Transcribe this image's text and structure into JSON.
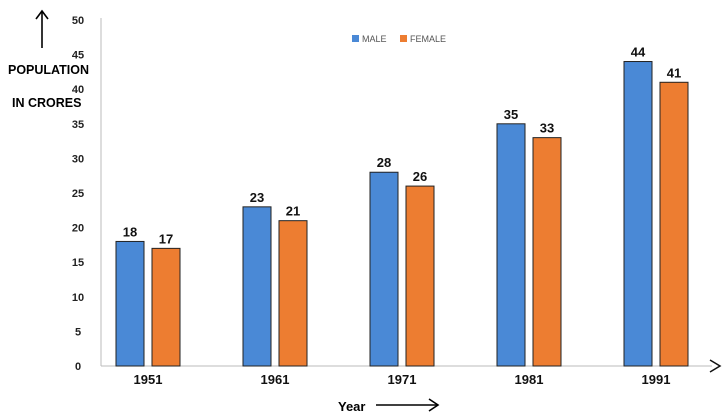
{
  "chart_data": {
    "type": "bar",
    "categories": [
      "1951",
      "1961",
      "1971",
      "1981",
      "1991"
    ],
    "series": [
      {
        "name": "MALE",
        "values": [
          18,
          23,
          28,
          35,
          44
        ],
        "color": "#4a89d6"
      },
      {
        "name": "FEMALE",
        "values": [
          17,
          21,
          26,
          33,
          41
        ],
        "color": "#ed7d31"
      }
    ],
    "ylim": [
      0,
      50
    ],
    "yticks": [
      0,
      5,
      10,
      15,
      20,
      25,
      30,
      35,
      40,
      45,
      50
    ],
    "ylabel_line1": "POPULATION",
    "ylabel_line2": "IN CRORES",
    "xlabel": "Year",
    "legend_position": "top-center",
    "grid": false
  }
}
